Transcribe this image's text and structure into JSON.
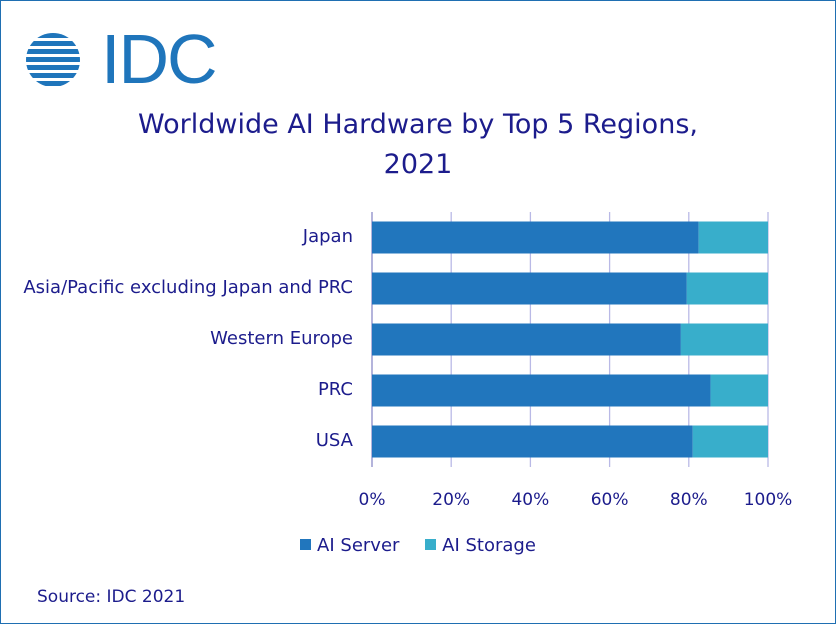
{
  "logo": {
    "text": "IDC"
  },
  "chart_data": {
    "type": "bar",
    "orientation": "horizontal",
    "stacked": true,
    "normalized": true,
    "title": [
      "Worldwide AI Hardware by Top 5 Regions,",
      "2021"
    ],
    "categories": [
      "Japan",
      "Asia/Pacific excluding Japan and PRC",
      "Western Europe",
      "PRC",
      "USA"
    ],
    "series": [
      {
        "name": "AI Server",
        "values": [
          82.5,
          79.5,
          78,
          85.5,
          81
        ],
        "color": "#2176bd"
      },
      {
        "name": "AI Storage",
        "values": [
          17.5,
          20.5,
          22,
          14.5,
          19
        ],
        "color": "#38aecb"
      }
    ],
    "xlim": [
      0,
      100
    ],
    "xticks": [
      "0%",
      "20%",
      "40%",
      "60%",
      "80%",
      "100%"
    ],
    "grid": true,
    "legend_position": "bottom"
  },
  "source": "Source: IDC 2021",
  "colors": {
    "text": "#1c1c8c",
    "grid": "#b9b9e6",
    "axis": "#8c8cc8",
    "border": "#1f6fb2"
  }
}
